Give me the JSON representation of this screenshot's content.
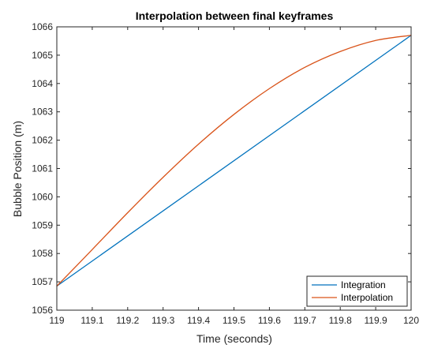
{
  "chart_data": {
    "type": "line",
    "title": "Interpolation between final keyframes",
    "xlabel": "Time (seconds)",
    "ylabel": "Bubble Position (m)",
    "xlim": [
      119,
      120
    ],
    "ylim": [
      1056,
      1066
    ],
    "x_ticks": [
      "119",
      "119.1",
      "119.2",
      "119.3",
      "119.4",
      "119.5",
      "119.6",
      "119.7",
      "119.8",
      "119.9",
      "120"
    ],
    "y_ticks": [
      "1056",
      "1057",
      "1058",
      "1059",
      "1060",
      "1061",
      "1062",
      "1063",
      "1064",
      "1065",
      "1066"
    ],
    "grid": false,
    "legend_position": "bottom-right",
    "series": [
      {
        "name": "Integration",
        "color": "#0072BD",
        "x": [
          119,
          120
        ],
        "y": [
          1056.85,
          1065.7
        ]
      },
      {
        "name": "Interpolation",
        "color": "#D95319",
        "x": [
          119,
          119.1,
          119.2,
          119.3,
          119.4,
          119.5,
          119.6,
          119.7,
          119.8,
          119.9,
          120
        ],
        "y": [
          1056.85,
          1058.14,
          1059.44,
          1060.69,
          1061.86,
          1062.91,
          1063.82,
          1064.57,
          1065.13,
          1065.52,
          1065.7
        ]
      }
    ]
  }
}
